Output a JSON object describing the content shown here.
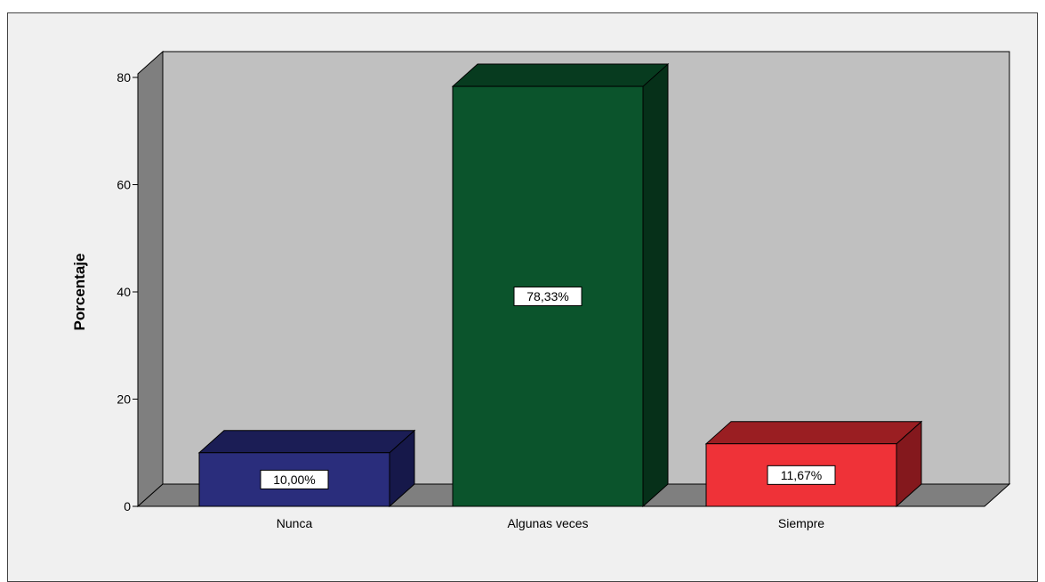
{
  "chart_data": {
    "type": "bar",
    "style": "3d",
    "categories": [
      "Nunca",
      "Algunas veces",
      "Siempre"
    ],
    "values": [
      10.0,
      78.33,
      11.67
    ],
    "data_labels": [
      "10,00%",
      "78,33%",
      "11,67%"
    ],
    "colors": {
      "front": [
        "#2a2d7c",
        "#0b542c",
        "#ef3238"
      ],
      "top": [
        "#1b1d55",
        "#073b1f",
        "#9a1e22"
      ],
      "side": [
        "#16184a",
        "#063019",
        "#84181d"
      ],
      "wall": "#c0c0c0",
      "left_wall": "#7f7f7f",
      "floor": "#7f7f7f",
      "frame_background": "#f0f0f0"
    },
    "ylabel": "Porcentaje",
    "xlabel": "",
    "ylim": [
      0,
      80
    ],
    "yticks": [
      0,
      20,
      40,
      60,
      80
    ],
    "grid": false,
    "legend": false
  }
}
